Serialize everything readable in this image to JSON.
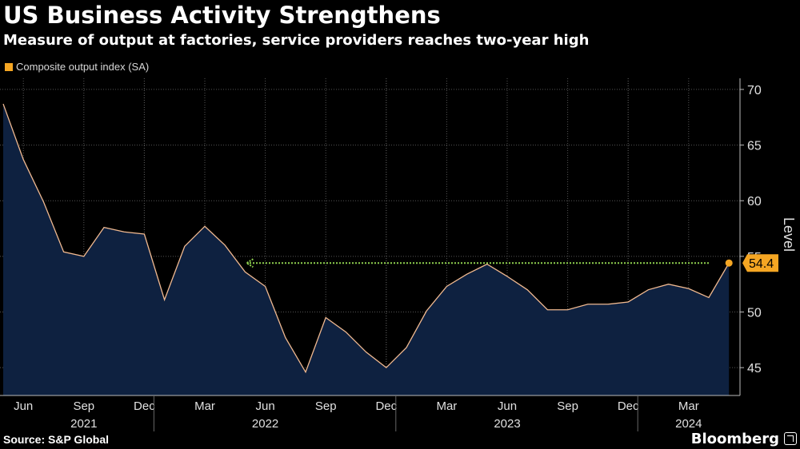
{
  "header": {
    "title": "US Business Activity Strengthens",
    "subtitle": "Measure of output at factories, service providers reaches two-year high"
  },
  "footer": {
    "source": "Source: S&P Global",
    "brand": "Bloomberg"
  },
  "colors": {
    "background": "#000000",
    "area_fill": "#0e2140",
    "line": "#f0b990",
    "marker": "#f5a623",
    "arrow": "#8fd14f",
    "grid": "#555555"
  },
  "chart_data": {
    "type": "area",
    "title": "US Business Activity Strengthens",
    "subtitle": "Measure of output at factories, service providers reaches two-year high",
    "ylabel": "Level",
    "xlabel": "",
    "ylim": [
      42.5,
      71
    ],
    "yticks": [
      45,
      50,
      55,
      60,
      65,
      70
    ],
    "grid": true,
    "legend_position": "top-left",
    "x": [
      "2021-05",
      "2021-06",
      "2021-07",
      "2021-08",
      "2021-09",
      "2021-10",
      "2021-11",
      "2021-12",
      "2022-01",
      "2022-02",
      "2022-03",
      "2022-04",
      "2022-05",
      "2022-06",
      "2022-07",
      "2022-08",
      "2022-09",
      "2022-10",
      "2022-11",
      "2022-12",
      "2023-01",
      "2023-02",
      "2023-03",
      "2023-04",
      "2023-05",
      "2023-06",
      "2023-07",
      "2023-08",
      "2023-09",
      "2023-10",
      "2023-11",
      "2023-12",
      "2024-01",
      "2024-02",
      "2024-03",
      "2024-04",
      "2024-05"
    ],
    "series": [
      {
        "name": "Composite output index (SA)",
        "values": [
          68.7,
          63.7,
          59.9,
          55.4,
          55.0,
          57.6,
          57.2,
          57.0,
          51.1,
          55.9,
          57.7,
          56.0,
          53.6,
          52.3,
          47.7,
          44.6,
          49.5,
          48.2,
          46.4,
          45.0,
          46.8,
          50.1,
          52.3,
          53.4,
          54.3,
          53.2,
          52.0,
          50.2,
          50.2,
          50.7,
          50.7,
          50.9,
          52.0,
          52.5,
          52.1,
          51.3,
          54.4
        ]
      }
    ],
    "x_tick_labels": [
      {
        "x": "2021-06",
        "label": "Jun"
      },
      {
        "x": "2021-09",
        "label": "Sep"
      },
      {
        "x": "2021-12",
        "label": "Dec"
      },
      {
        "x": "2022-03",
        "label": "Mar"
      },
      {
        "x": "2022-06",
        "label": "Jun"
      },
      {
        "x": "2022-09",
        "label": "Sep"
      },
      {
        "x": "2022-12",
        "label": "Dec"
      },
      {
        "x": "2023-03",
        "label": "Mar"
      },
      {
        "x": "2023-06",
        "label": "Jun"
      },
      {
        "x": "2023-09",
        "label": "Sep"
      },
      {
        "x": "2023-12",
        "label": "Dec"
      },
      {
        "x": "2024-03",
        "label": "Mar"
      }
    ],
    "year_labels": [
      {
        "x": "2021-09",
        "label": "2021"
      },
      {
        "x": "2022-06",
        "label": "2022"
      },
      {
        "x": "2023-06",
        "label": "2023"
      },
      {
        "x": "2024-03",
        "label": "2024"
      }
    ],
    "year_separators": [
      "2021-12",
      "2022-12",
      "2023-12"
    ],
    "annotations": [
      {
        "type": "last-value",
        "x": "2024-05",
        "value": 54.4,
        "label": "54.4"
      },
      {
        "type": "arrow",
        "from_x": "2024-04",
        "to_x": "2022-05",
        "y": 54.4
      }
    ]
  }
}
